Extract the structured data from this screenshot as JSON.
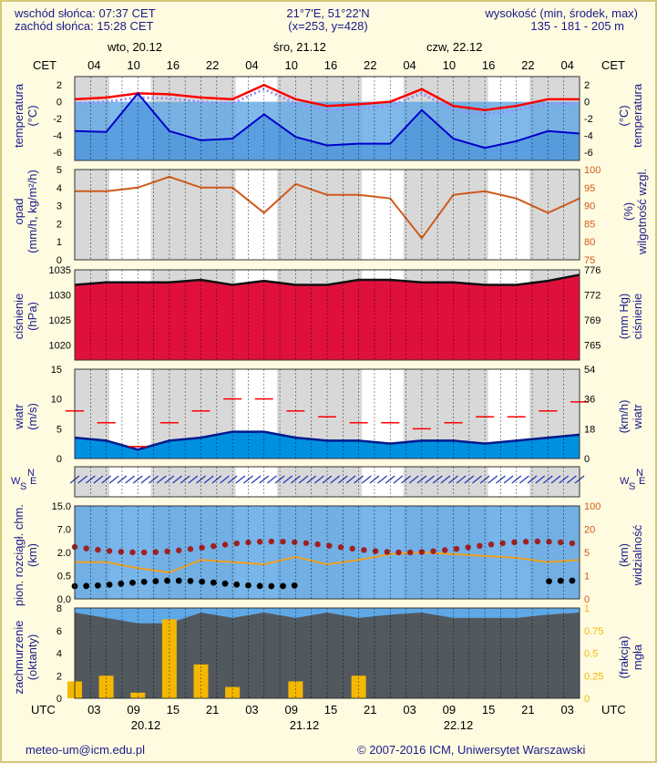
{
  "header": {
    "sunrise": "wschód słońca: 07:37 CET",
    "sunset": "zachód słońca: 15:28 CET",
    "coords": "21°7'E, 51°22'N",
    "grid": "(x=253,  y=428)",
    "altitude_title": "wysokość (min, środek, max)",
    "altitude_values": "135 - 181 - 205 m"
  },
  "top_axis": {
    "tz": "CET",
    "hours": [
      "04",
      "10",
      "16",
      "22",
      "04",
      "10",
      "16",
      "22",
      "04",
      "10",
      "16",
      "22",
      "04"
    ],
    "days": [
      "wto, 20.12",
      "śro, 21.12",
      "czw, 22.12"
    ]
  },
  "bottom_axis": {
    "tz": "UTC",
    "hours": [
      "03",
      "09",
      "15",
      "21",
      "03",
      "09",
      "15",
      "21",
      "03",
      "09",
      "15",
      "21",
      "03"
    ],
    "dates": [
      "20.12",
      "21.12",
      "22.12"
    ]
  },
  "footer": {
    "email": "meteo-um@icm.edu.pl",
    "copyright": "© 2007-2016 ICM, Uniwersytet Warszawski"
  },
  "panels": {
    "temperature": {
      "left_label": "temperatura",
      "left_unit": "(°C)",
      "right_label": "temperatura",
      "right_unit": "(°C)",
      "ticks": [
        "2",
        "0",
        "-2",
        "-4",
        "-6"
      ]
    },
    "precip": {
      "left_label": "opad",
      "left_unit": "(mm/h, kg/m²/h)",
      "right_label": "wilgotność wzgl.",
      "right_unit": "(%)",
      "ticks_left": [
        "5",
        "4",
        "3",
        "2",
        "1",
        "0"
      ],
      "ticks_right": [
        "100",
        "95",
        "90",
        "85",
        "80",
        "75"
      ]
    },
    "pressure": {
      "left_label": "ciśnienie",
      "left_unit": "(hPa)",
      "right_label": "ciśnienie",
      "right_unit": "(mm Hg)",
      "ticks_left": [
        "1035",
        "1030",
        "1025",
        "1020"
      ],
      "ticks_right": [
        "776",
        "772",
        "769",
        "765"
      ]
    },
    "wind": {
      "left_label": "wiatr",
      "left_unit": "(m/s)",
      "right_label": "wiatr",
      "right_unit": "(km/h)",
      "ticks_left": [
        "15",
        "10",
        "5",
        "0"
      ],
      "ticks_right": [
        "54",
        "36",
        "18",
        "0"
      ]
    },
    "direction": {
      "compass": [
        "W",
        "S",
        "N",
        "E"
      ]
    },
    "visibility": {
      "left_label": "pion. rozciągł. chm.",
      "left_unit": "(km)",
      "right_label": "widzialność",
      "right_unit": "(km)",
      "ticks_left": [
        "15.0",
        "7.0",
        "2.0",
        "0.5",
        "0.0"
      ],
      "ticks_right": [
        "100",
        "20",
        "5",
        "1",
        "0"
      ]
    },
    "clouds": {
      "left_label": "zachmurzenie",
      "left_unit": "(oktanty)",
      "right_label": "mgła",
      "right_unit": "(frakcja)",
      "ticks_left": [
        "8",
        "6",
        "4",
        "2",
        "0"
      ],
      "ticks_right": [
        "1",
        "0.75",
        "0.5",
        "0.25",
        "0"
      ]
    }
  },
  "colors": {
    "background": "#fffbe0",
    "text": "#1a1a8c",
    "temp": "#ff0000",
    "dew": "#0000cc",
    "humidity": "#d05a1a",
    "pressure_fill": "#e0103c",
    "wind_fill": "#0090e0",
    "gust": "#ff0000",
    "precip_bars": "#f5b800"
  },
  "chart_data": {
    "type": "line",
    "time_hours_utc": [
      0,
      6,
      12,
      18,
      24,
      30,
      36,
      42,
      48,
      54,
      60,
      66,
      72,
      78,
      84,
      90,
      96
    ],
    "temperature_c": [
      0.3,
      0.5,
      1.0,
      0.9,
      0.5,
      0.3,
      2.0,
      0.3,
      -0.5,
      -0.3,
      0.0,
      1.5,
      -0.5,
      -1.0,
      -0.5,
      0.3,
      0.3
    ],
    "dewpoint_c": [
      -3.5,
      -3.6,
      1.0,
      -3.5,
      -4.6,
      -4.4,
      -1.5,
      -4.2,
      -5.2,
      -5.0,
      -5.0,
      -1.0,
      -4.4,
      -5.5,
      -4.7,
      -3.5,
      -3.8
    ],
    "humidity_pct": [
      94,
      94,
      95,
      98,
      95,
      95,
      88,
      96,
      93,
      93,
      92,
      81,
      93,
      94,
      92,
      88,
      92
    ],
    "pressure_hpa": [
      1032,
      1032.5,
      1032.5,
      1032.5,
      1033,
      1032,
      1032.8,
      1032,
      1032,
      1033,
      1033,
      1032.5,
      1032.5,
      1032,
      1032,
      1032.8,
      1034
    ],
    "wind_ms": [
      3.5,
      3,
      1.5,
      3,
      3.5,
      4.5,
      4.5,
      3.5,
      3,
      3,
      2.5,
      3,
      3,
      2.5,
      3,
      3.5,
      4
    ],
    "gust_ms": [
      8,
      6,
      2,
      6,
      8,
      10,
      10,
      8,
      7,
      6,
      6,
      5,
      6,
      7,
      7,
      8,
      9.5
    ],
    "cloud_cover_oktas": [
      8,
      7.5,
      7,
      7,
      8,
      7.5,
      8,
      7.5,
      8,
      7.5,
      7.8,
      8,
      7.5,
      7.5,
      7.5,
      7.8,
      8
    ],
    "precip_oktas_bars": [
      1.5,
      2,
      0.5,
      7,
      3,
      1,
      0,
      1.5,
      0,
      2,
      0,
      0,
      0,
      0,
      0,
      0,
      0
    ],
    "visibility_km": [
      2.0,
      2.0,
      1.5,
      1.2,
      2.2,
      2.0,
      1.8,
      2.5,
      1.8,
      2.2,
      2.8,
      3.0,
      2.8,
      2.6,
      2.4,
      2.0,
      2.2
    ]
  }
}
